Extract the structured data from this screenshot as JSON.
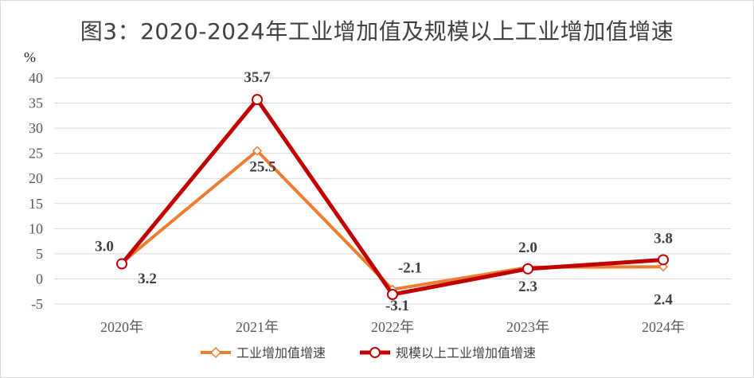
{
  "title": "图3：2020-2024年工业增加值及规模以上工业增加值增速",
  "chart_data": {
    "type": "line",
    "title": "图3：2020-2024年工业增加值及规模以上工业增加值增速",
    "ylabel": "%",
    "ylim": [
      -5,
      40
    ],
    "yticks": [
      40,
      35,
      30,
      25,
      20,
      15,
      10,
      5,
      0,
      -5
    ],
    "yticks_text": [
      "40",
      "35",
      "30",
      "25",
      "20",
      "15",
      "10",
      "5",
      "0",
      "-5"
    ],
    "categories": [
      "2020年",
      "2021年",
      "2022年",
      "2023年",
      "2024年"
    ],
    "grid": true,
    "legend": "bottom",
    "series": [
      {
        "name": "工业增加值增速",
        "values": [
          3.2,
          25.5,
          -2.1,
          2.3,
          2.4
        ],
        "labels": [
          "3.2",
          "25.5",
          "-2.1",
          "2.3",
          "2.4"
        ],
        "color": "#ED7D31",
        "marker": "diamond-hollow"
      },
      {
        "name": "规模以上工业增加值增速",
        "values": [
          3.0,
          35.7,
          -3.1,
          2.0,
          3.8
        ],
        "labels": [
          "3.0",
          "35.7",
          "-3.1",
          "2.0",
          "3.8"
        ],
        "color": "#C00000",
        "marker": "circle-hollow"
      }
    ]
  }
}
